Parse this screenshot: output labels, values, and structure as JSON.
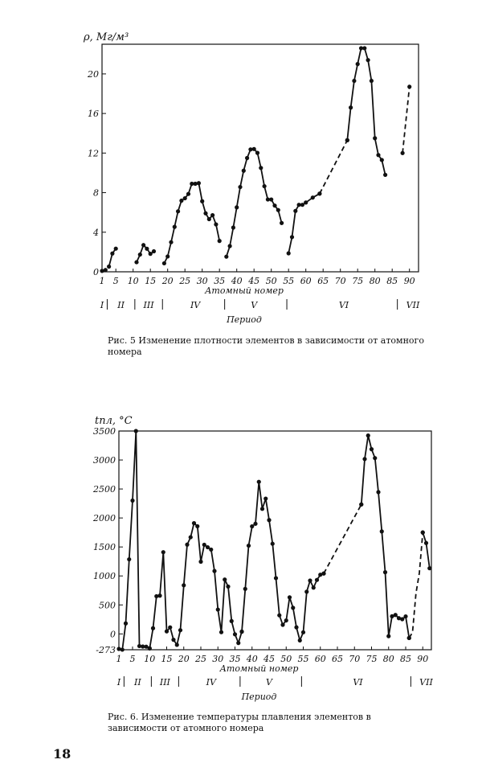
{
  "chart_data": [
    {
      "type": "line",
      "ylabel": "ρ, Мг/м³",
      "xlabel": "Атомный номер",
      "period_label": "Период",
      "ylim": [
        0,
        23
      ],
      "yticks": [
        0,
        4,
        8,
        12,
        16,
        20
      ],
      "xticks": [
        1,
        5,
        10,
        15,
        20,
        25,
        30,
        35,
        40,
        45,
        50,
        55,
        60,
        65,
        70,
        75,
        80,
        85,
        90
      ],
      "periods": [
        {
          "label": "I",
          "x": 1
        },
        {
          "label": "II",
          "x": 6.5
        },
        {
          "label": "III",
          "x": 14.5
        },
        {
          "label": "IV",
          "x": 28
        },
        {
          "label": "V",
          "x": 45
        },
        {
          "label": "VI",
          "x": 71
        },
        {
          "label": "VII",
          "x": 91
        }
      ],
      "period_dividers": [
        2.5,
        10.5,
        18.5,
        36.5,
        54.5,
        86.5
      ],
      "series": [
        {
          "x": [
            1,
            2
          ],
          "y": [
            0.09,
            0.18
          ]
        },
        {
          "x": [
            3,
            4,
            5
          ],
          "y": [
            0.53,
            1.85,
            2.34
          ]
        },
        {
          "x": [
            11,
            12,
            13,
            14,
            15,
            16
          ],
          "y": [
            0.97,
            1.74,
            2.7,
            2.33,
            1.82,
            2.07
          ]
        },
        {
          "x": [
            19,
            20,
            21,
            22,
            23,
            24,
            25,
            26,
            27,
            28,
            29,
            30,
            31,
            32,
            33,
            34,
            35
          ],
          "y": [
            0.86,
            1.55,
            2.99,
            4.54,
            6.11,
            7.19,
            7.43,
            7.87,
            8.9,
            8.9,
            8.96,
            7.13,
            5.91,
            5.32,
            5.72,
            4.79,
            3.12
          ]
        },
        {
          "x": [
            37,
            38,
            39,
            40,
            41,
            42,
            43,
            44,
            45,
            46,
            47,
            48,
            49,
            50,
            51,
            52,
            53
          ],
          "y": [
            1.53,
            2.6,
            4.47,
            6.51,
            8.57,
            10.22,
            11.5,
            12.37,
            12.41,
            12.02,
            10.5,
            8.65,
            7.31,
            7.31,
            6.69,
            6.24,
            4.93
          ]
        },
        {
          "x": [
            55,
            56,
            57,
            58,
            59,
            60,
            62,
            64
          ],
          "y": [
            1.87,
            3.51,
            6.15,
            6.77,
            6.77,
            7.0,
            7.5,
            7.9
          ]
        },
        {
          "x": [
            64,
            72
          ],
          "y": [
            7.9,
            13.3
          ],
          "dashed": true
        },
        {
          "x": [
            72,
            73,
            74,
            75,
            76,
            77,
            78,
            79,
            80,
            81,
            82,
            83
          ],
          "y": [
            13.3,
            16.6,
            19.3,
            21.0,
            22.6,
            22.6,
            21.4,
            19.3,
            13.5,
            11.8,
            11.3,
            9.8
          ]
        },
        {
          "x": [
            88,
            90
          ],
          "y": [
            12.0,
            18.7
          ],
          "dashed": true
        }
      ]
    },
    {
      "type": "line",
      "ylabel": "tпл, °C",
      "xlabel": "Атомный номер",
      "period_label": "Период",
      "ylim": [
        -273,
        3500
      ],
      "yticks": [
        -273,
        0,
        500,
        1000,
        1500,
        2000,
        2500,
        3000,
        3500
      ],
      "ytick_labels": [
        "-273",
        "0",
        "500",
        "1000",
        "1500",
        "2000",
        "2500",
        "3000",
        "3500"
      ],
      "xticks": [
        1,
        5,
        10,
        15,
        20,
        25,
        30,
        35,
        40,
        45,
        50,
        55,
        60,
        65,
        70,
        75,
        80,
        85,
        90
      ],
      "periods": [
        {
          "label": "I",
          "x": 1
        },
        {
          "label": "II",
          "x": 6.5
        },
        {
          "label": "III",
          "x": 14.5
        },
        {
          "label": "IV",
          "x": 28
        },
        {
          "label": "V",
          "x": 45
        },
        {
          "label": "VI",
          "x": 71
        },
        {
          "label": "VII",
          "x": 91
        }
      ],
      "period_dividers": [
        2.5,
        10.5,
        18.5,
        36.5,
        54.5,
        86.5
      ],
      "series": [
        {
          "x": [
            1,
            2,
            3,
            4,
            5,
            6,
            7,
            8,
            9,
            10
          ],
          "y": [
            -259,
            -272,
            181,
            1287,
            2300,
            3500,
            -210,
            -218,
            -220,
            -249
          ]
        },
        {
          "x": [
            10,
            11,
            12,
            13,
            14,
            15,
            16,
            17,
            18,
            19,
            20,
            21,
            22,
            23,
            24,
            25,
            26,
            27,
            28,
            29,
            30,
            31,
            32,
            33,
            34,
            35,
            36,
            37
          ],
          "y": [
            -249,
            98,
            650,
            660,
            1410,
            44,
            113,
            -101,
            -189,
            64,
            839,
            1541,
            1668,
            1910,
            1857,
            1246,
            1538,
            1495,
            1455,
            1085,
            420,
            30,
            938,
            817,
            221,
            -7,
            -157,
            39
          ]
        },
        {
          "x": [
            37,
            38,
            39,
            40,
            41,
            42,
            43,
            44,
            45,
            46,
            47,
            48,
            49,
            50,
            51,
            52,
            53,
            54,
            55,
            56,
            57,
            58,
            59,
            60,
            61
          ],
          "y": [
            39,
            777,
            1522,
            1855,
            1900,
            2623,
            2157,
            2334,
            1964,
            1555,
            962,
            321,
            157,
            232,
            631,
            450,
            114,
            -112,
            28,
            727,
            920,
            798,
            931,
            1021,
            1042
          ]
        },
        {
          "x": [
            61,
            72
          ],
          "y": [
            1042,
            2233
          ],
          "dashed": true
        },
        {
          "x": [
            72,
            73,
            74,
            75,
            76,
            77,
            78,
            79,
            80,
            81,
            82,
            83,
            84,
            85,
            86
          ],
          "y": [
            2233,
            3017,
            3422,
            3186,
            3033,
            2446,
            1768,
            1064,
            -39,
            304,
            327,
            271,
            254,
            302,
            -71
          ]
        },
        {
          "x": [
            86,
            87,
            88,
            89,
            90
          ],
          "y": [
            -71,
            27,
            700,
            1050,
            1750
          ],
          "dashed": true
        },
        {
          "x": [
            90,
            91,
            92
          ],
          "y": [
            1750,
            1568,
            1132
          ]
        }
      ]
    }
  ],
  "captions": {
    "fig5": "Рис. 5 Изменение плотности элементов в зависимости от атомного номера",
    "fig6": "Рис. 6. Изменение температуры плавления элементов в зависимости от атомного номера"
  },
  "page_number": "18"
}
